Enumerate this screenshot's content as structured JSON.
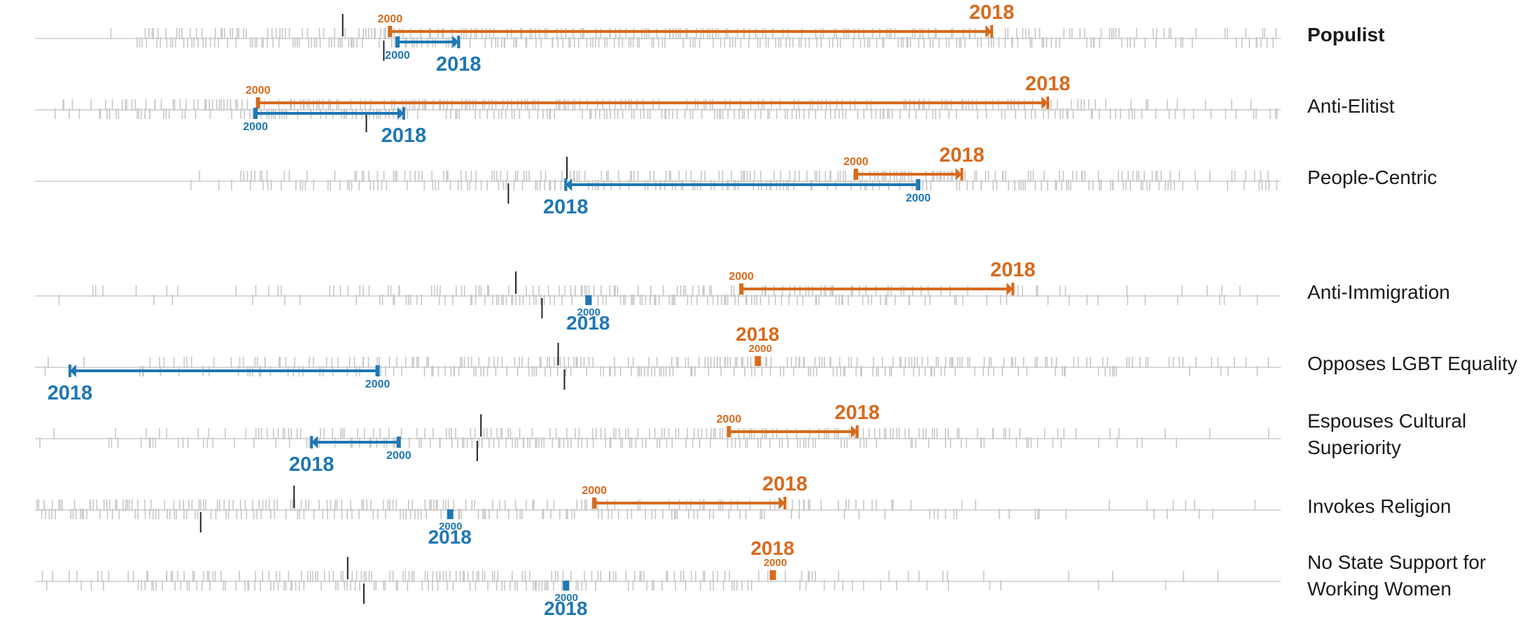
{
  "chart_data": {
    "type": "strip",
    "rows": [
      {
        "label": "Populist",
        "bold": true,
        "orange": {
          "from": 0.285,
          "to": 0.768,
          "from_label": "2000",
          "to_label": "2018"
        },
        "blue": {
          "from": 0.291,
          "to": 0.34,
          "from_label": "2000",
          "to_label": "2018"
        },
        "refs": [
          0.247,
          0.28
        ],
        "density": [
          0.02,
          0.95,
          0.9,
          0.92,
          0.95,
          0.97,
          0.95,
          0.9,
          0.85,
          0.75,
          0.6,
          0.4
        ]
      },
      {
        "label": "Anti-Elitist",
        "bold": false,
        "orange": {
          "from": 0.179,
          "to": 0.813,
          "from_label": "2000",
          "to_label": "2018"
        },
        "blue": {
          "from": 0.177,
          "to": 0.296,
          "from_label": "2000",
          "to_label": "2018"
        },
        "refs": [
          null,
          0.266
        ],
        "density": [
          0.5,
          0.95,
          0.95,
          0.95,
          0.93,
          0.9,
          0.88,
          0.85,
          0.8,
          0.7,
          0.55,
          0.4
        ]
      },
      {
        "label": "People-Centric",
        "bold": false,
        "orange": {
          "from": 0.659,
          "to": 0.744,
          "from_label": "2000",
          "to_label": "2018"
        },
        "blue": {
          "from": 0.709,
          "to": 0.426,
          "from_label": "2000",
          "to_label": "2018"
        },
        "refs": [
          0.427,
          0.38
        ],
        "density": [
          0.05,
          0.2,
          0.4,
          0.7,
          0.8,
          0.85,
          0.9,
          0.9,
          0.9,
          0.85,
          0.8,
          0.6
        ]
      },
      {
        "label": "Anti-Immigration",
        "bold": false,
        "orange": {
          "from": 0.567,
          "to": 0.785,
          "from_label": "2000",
          "to_label": "2018"
        },
        "blue": {
          "from": 0.444,
          "to": 0.444,
          "from_label": "2000",
          "to_label": "2018"
        },
        "refs": [
          0.386,
          0.407
        ],
        "density": [
          0.05,
          0.15,
          0.3,
          0.6,
          0.8,
          0.9,
          0.92,
          0.85,
          0.55,
          0.3,
          0.2,
          0.1
        ]
      },
      {
        "label": "Opposes LGBT Equality",
        "bold": false,
        "orange": {
          "from": 0.58,
          "to": 0.58,
          "from_label": "2000",
          "to_label": "2018"
        },
        "blue": {
          "from": 0.275,
          "to": 0.028,
          "from_label": "2000",
          "to_label": "2018"
        },
        "refs": [
          0.42,
          0.425
        ],
        "density": [
          0.05,
          0.4,
          0.6,
          0.75,
          0.85,
          0.9,
          0.92,
          0.88,
          0.8,
          0.6,
          0.4,
          0.2
        ]
      },
      {
        "label": "Espouses Cultural\nSuperiority",
        "bold": false,
        "orange": {
          "from": 0.557,
          "to": 0.66,
          "from_label": "2000",
          "to_label": "2018"
        },
        "blue": {
          "from": 0.292,
          "to": 0.222,
          "from_label": "2000",
          "to_label": "2018"
        },
        "refs": [
          0.358,
          0.355
        ],
        "density": [
          0.15,
          0.4,
          0.55,
          0.7,
          0.8,
          0.85,
          0.85,
          0.8,
          0.7,
          0.45,
          0.2,
          0.08
        ]
      },
      {
        "label": "Invokes Religion",
        "bold": false,
        "orange": {
          "from": 0.449,
          "to": 0.602,
          "from_label": "2000",
          "to_label": "2018"
        },
        "blue": {
          "from": 0.333,
          "to": 0.333,
          "from_label": "2000",
          "to_label": "2018"
        },
        "refs": [
          0.208,
          0.133
        ],
        "density": [
          0.95,
          0.92,
          0.85,
          0.8,
          0.75,
          0.7,
          0.6,
          0.45,
          0.3,
          0.15,
          0.08,
          0.05
        ]
      },
      {
        "label": "No State Support for\nWorking Women",
        "bold": false,
        "orange": {
          "from": 0.592,
          "to": 0.592,
          "from_label": "2000",
          "to_label": "2018"
        },
        "blue": {
          "from": 0.426,
          "to": 0.426,
          "from_label": "2000",
          "to_label": "2018"
        },
        "refs": [
          0.251,
          0.264
        ],
        "density": [
          0.3,
          0.8,
          0.85,
          0.85,
          0.8,
          0.7,
          0.55,
          0.35,
          0.2,
          0.1,
          0.05,
          0.03
        ]
      }
    ],
    "colors": {
      "orange": "#d86a1c",
      "blue": "#1f77b4",
      "strip": "#c8c8c8",
      "baseline": "#d9d9d9",
      "ref": "#222222"
    }
  }
}
